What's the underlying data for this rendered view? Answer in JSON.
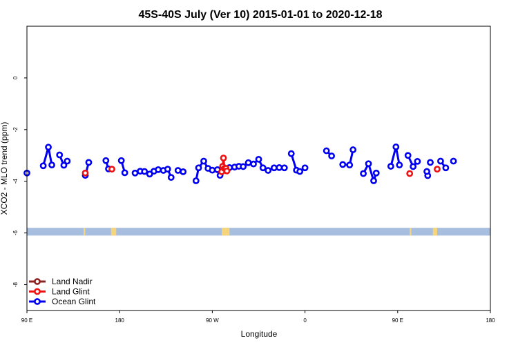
{
  "chart_data": {
    "type": "line",
    "title": "45S-40S July (Ver 10)   2015-01-01 to 2020-12-18",
    "xlabel": "Longitude",
    "ylabel": "XCO2 - MLO trend (ppm)",
    "xlim": [
      -270,
      270
    ],
    "ylim": [
      -9,
      2
    ],
    "x_ticks": [
      {
        "value": -270,
        "label": "90 E"
      },
      {
        "value": -162,
        "label": "180"
      },
      {
        "value": -54,
        "label": "90 W"
      },
      {
        "value": 54,
        "label": "0"
      },
      {
        "value": 162,
        "label": "90 E"
      },
      {
        "value": 270,
        "label": "180"
      }
    ],
    "y_ticks": [
      {
        "value": 0,
        "label": "0"
      },
      {
        "value": -2,
        "label": "-2"
      },
      {
        "value": -4,
        "label": "-4"
      },
      {
        "value": -6,
        "label": "-6"
      },
      {
        "value": -8,
        "label": "-8"
      }
    ],
    "grid": false,
    "legend_position": "bottom-left",
    "map_strip": {
      "y_top": -5.8,
      "y_bottom": -6.1,
      "ocean_color": "#a7bedf",
      "land_color": "#f5d47a",
      "land_spans": [
        [
          -204,
          -202
        ],
        [
          -172,
          -166
        ],
        [
          -43,
          -34
        ],
        [
          176,
          178
        ],
        [
          203,
          208
        ]
      ]
    },
    "series": [
      {
        "name": "Land Nadir",
        "color": "#8b2323",
        "segments": []
      },
      {
        "name": "Land Glint",
        "color": "#ee1111",
        "segments": [
          [
            [
              -202,
              -3.68
            ]
          ],
          [
            [
              -171,
              -3.53
            ]
          ],
          [
            [
              -43,
              -3.63
            ],
            [
              -42,
              -3.42
            ],
            [
              -41,
              -3.1
            ],
            [
              -40,
              -3.5
            ],
            [
              -38,
              -3.5
            ],
            [
              -37,
              -3.6
            ]
          ],
          [
            [
              176,
              -3.7
            ]
          ],
          [
            [
              208,
              -3.53
            ]
          ]
        ]
      },
      {
        "name": "Ocean Glint",
        "color": "#0000ee",
        "segments": [
          [
            [
              -270,
              -3.68
            ]
          ],
          [
            [
              -251,
              -3.4
            ],
            [
              -245,
              -2.68
            ],
            [
              -241,
              -3.37
            ]
          ],
          [
            [
              -232,
              -2.98
            ],
            [
              -227,
              -3.38
            ],
            [
              -223,
              -3.22
            ]
          ],
          [
            [
              -202,
              -3.77
            ],
            [
              -198,
              -3.27
            ]
          ],
          [
            [
              -178,
              -3.2
            ],
            [
              -175,
              -3.52
            ]
          ],
          [
            [
              -160,
              -3.2
            ],
            [
              -156,
              -3.67
            ]
          ],
          [
            [
              -144,
              -3.68
            ],
            [
              -138,
              -3.61
            ],
            [
              -133,
              -3.62
            ]
          ],
          [
            [
              -127,
              -3.72
            ]
          ],
          [
            [
              -122,
              -3.61
            ],
            [
              -117,
              -3.55
            ],
            [
              -111,
              -3.58
            ]
          ],
          [
            [
              -106,
              -3.53
            ],
            [
              -102,
              -3.85
            ]
          ],
          [
            [
              -94,
              -3.58
            ],
            [
              -88,
              -3.63
            ]
          ],
          [
            [
              -73,
              -3.98
            ],
            [
              -70,
              -3.48
            ],
            [
              -64,
              -3.22
            ],
            [
              -59,
              -3.5
            ],
            [
              -54,
              -3.57
            ]
          ],
          [
            [
              -48,
              -3.55
            ],
            [
              -45,
              -3.77
            ],
            [
              -42,
              -3.52
            ]
          ],
          [
            [
              -34,
              -3.47
            ],
            [
              -28,
              -3.45
            ],
            [
              -23,
              -3.42
            ],
            [
              -18,
              -3.43
            ],
            [
              -12,
              -3.28
            ],
            [
              -6,
              -3.33
            ],
            [
              0,
              -3.15
            ],
            [
              5,
              -3.48
            ],
            [
              11,
              -3.58
            ],
            [
              18,
              -3.48
            ],
            [
              24,
              -3.47
            ],
            [
              30,
              -3.48
            ]
          ],
          [
            [
              38,
              -2.93
            ],
            [
              44,
              -3.57
            ],
            [
              48,
              -3.62
            ]
          ],
          [
            [
              54,
              -3.48
            ]
          ],
          [
            [
              79,
              -2.82
            ],
            [
              85,
              -3.02
            ]
          ],
          [
            [
              98,
              -3.35
            ],
            [
              106,
              -3.37
            ],
            [
              110,
              -2.78
            ]
          ],
          [
            [
              122,
              -3.7
            ],
            [
              128,
              -3.32
            ],
            [
              134,
              -3.98
            ],
            [
              137,
              -3.68
            ]
          ],
          [
            [
              154,
              -3.42
            ],
            [
              160,
              -2.67
            ],
            [
              164,
              -3.37
            ]
          ],
          [
            [
              174,
              -3.0
            ],
            [
              180,
              -3.43
            ],
            [
              185,
              -3.23
            ]
          ],
          [
            [
              197,
              -3.78
            ]
          ],
          [
            [
              200,
              -3.27
            ]
          ],
          [
            [
              196,
              -3.62
            ]
          ],
          [
            [
              212,
              -3.22
            ],
            [
              218,
              -3.48
            ]
          ],
          [
            [
              227,
              -3.22
            ]
          ]
        ]
      }
    ]
  }
}
